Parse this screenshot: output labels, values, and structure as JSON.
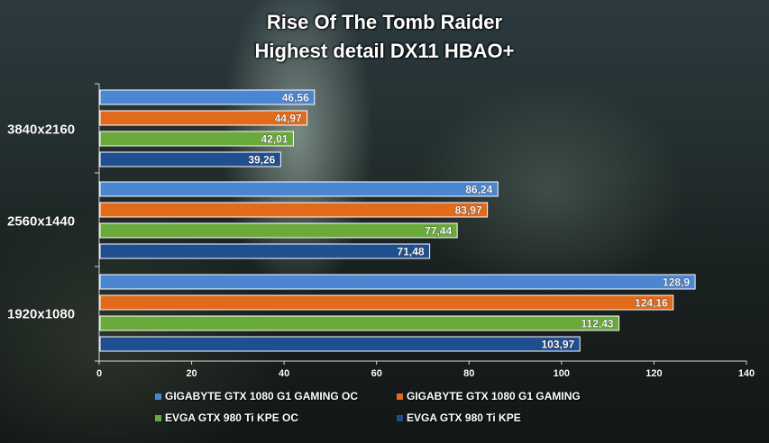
{
  "chart_data": {
    "type": "bar",
    "orientation": "horizontal",
    "title": "Rise Of The Tomb Raider",
    "subtitle": "Highest detail DX11 HBAO+",
    "categories": [
      "3840x2160",
      "2560x1440",
      "1920x1080"
    ],
    "series": [
      {
        "name": "GIGABYTE GTX 1080 G1 GAMING OC",
        "color": "#4a86d1",
        "values": [
          46.56,
          86.24,
          128.9
        ],
        "labels": [
          "46,56",
          "86,24",
          "128,9"
        ]
      },
      {
        "name": "GIGABYTE GTX 1080 G1 GAMING",
        "color": "#e16a1c",
        "values": [
          44.97,
          83.97,
          124.16
        ],
        "labels": [
          "44,97",
          "83,97",
          "124,16"
        ]
      },
      {
        "name": "EVGA GTX 980 Ti KPE OC",
        "color": "#6aaa3a",
        "values": [
          42.01,
          77.44,
          112.43
        ],
        "labels": [
          "42,01",
          "77,44",
          "112,43"
        ]
      },
      {
        "name": "EVGA GTX 980 Ti KPE",
        "color": "#1f4f8f",
        "values": [
          39.26,
          71.48,
          103.97
        ],
        "labels": [
          "39,26",
          "71,48",
          "103,97"
        ]
      }
    ],
    "x_ticks": [
      "0",
      "20",
      "40",
      "60",
      "80",
      "100",
      "120",
      "140"
    ],
    "xlim": [
      0,
      140
    ],
    "grid": false,
    "legend_position": "bottom"
  }
}
